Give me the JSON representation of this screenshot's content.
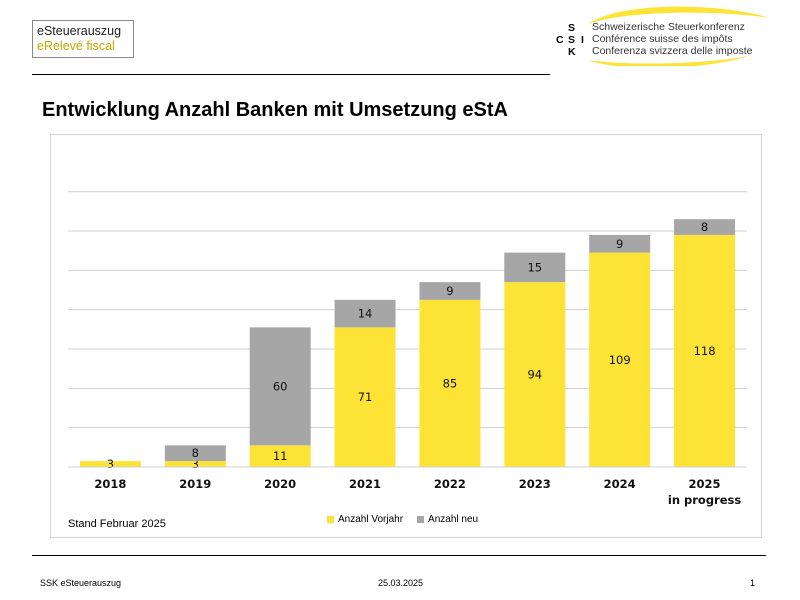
{
  "header": {
    "logo_line1": "eSteuerauszug",
    "logo_line2": "eRelevé fiscal",
    "org_letters": [
      "S",
      "C",
      "S",
      "I",
      "K"
    ],
    "org_names": [
      "Schweizerische Steuerkonferenz",
      "Conférence suisse des impôts",
      "Conferenza svizzera delle imposte"
    ]
  },
  "title": "Entwicklung Anzahl Banken mit Umsetzung eStA",
  "note": "Stand Februar 2025",
  "footer": {
    "left": "SSK eSteuerauszug",
    "date": "25.03.2025",
    "page": "1"
  },
  "colors": {
    "vorjahr": "#fde335",
    "neu": "#a6a6a6",
    "accent": "#c9a400"
  },
  "chart_data": {
    "type": "bar",
    "stacked": true,
    "categories": [
      "2018",
      "2019",
      "2020",
      "2021",
      "2022",
      "2023",
      "2024",
      "2025"
    ],
    "category_sublabels": [
      "",
      "",
      "",
      "",
      "",
      "",
      "",
      "in progress"
    ],
    "series": [
      {
        "name": "Anzahl Vorjahr",
        "values": [
          3,
          3,
          11,
          71,
          85,
          94,
          109,
          118
        ]
      },
      {
        "name": "Anzahl neu",
        "values": [
          0,
          8,
          60,
          14,
          9,
          15,
          9,
          8
        ]
      }
    ],
    "ylim": [
      0,
      140
    ],
    "grid": true,
    "legend": "bottom"
  }
}
